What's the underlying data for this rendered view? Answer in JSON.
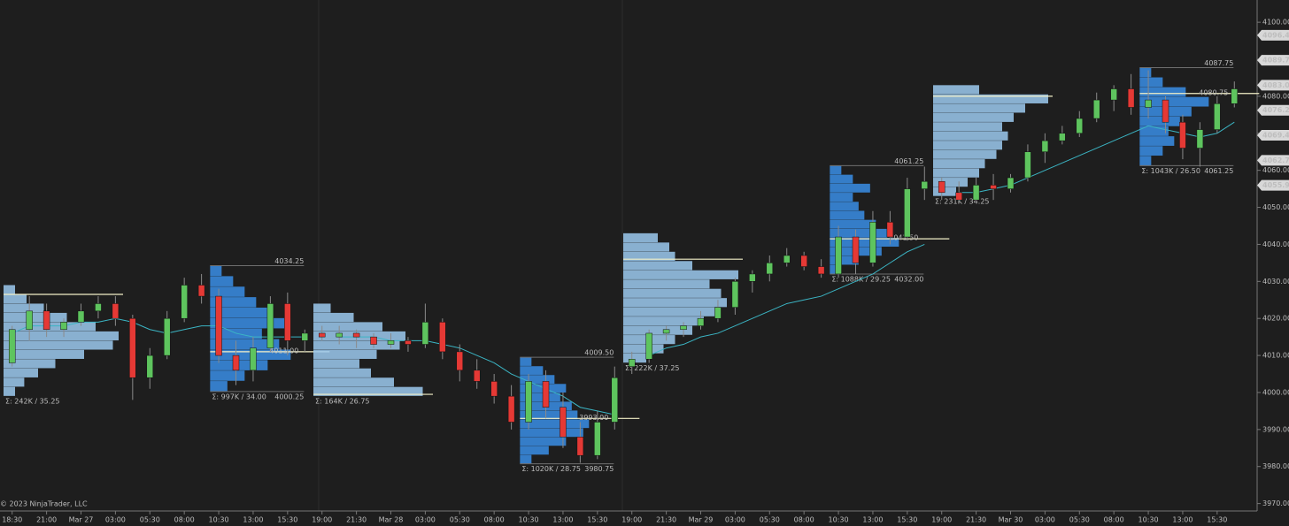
{
  "chart_data": {
    "type": "candlestick",
    "copyright": "© 2023 NinjaTrader, LLC",
    "up_color": "#5ec45e",
    "down_color": "#e53935",
    "ylim": [
      3968,
      4106
    ],
    "yticks": [
      {
        "value": 3970,
        "label": "3970.00"
      },
      {
        "value": 3980,
        "label": "3980.00"
      },
      {
        "value": 3990,
        "label": "3990.00"
      },
      {
        "value": 4000,
        "label": "4000.00"
      },
      {
        "value": 4010,
        "label": "4010.00"
      },
      {
        "value": 4020,
        "label": "4020.00"
      },
      {
        "value": 4030,
        "label": "4030.00"
      },
      {
        "value": 4040,
        "label": "4040.00"
      },
      {
        "value": 4050,
        "label": "4050.00"
      },
      {
        "value": 4060,
        "label": "4060.00"
      },
      {
        "value": 4070,
        "label": "4070.00"
      },
      {
        "value": 4080,
        "label": "4080.00"
      },
      {
        "value": 4090,
        "label": "4090.00"
      },
      {
        "value": 4100,
        "label": "4100.00"
      }
    ],
    "price_markers": [
      4096.49,
      4089.73,
      {
        "value": 4083,
        "label": "4083.00"
      },
      4076.22,
      4069.47,
      4062.71,
      4055.95
    ],
    "categories": [
      "18:30",
      null,
      "21:00",
      null,
      "Mar 27",
      null,
      "03:00",
      null,
      "05:30",
      null,
      "08:00",
      null,
      "10:30",
      null,
      "13:00",
      null,
      "15:30",
      null,
      "19:00",
      null,
      "21:30",
      null,
      "Mar 28",
      null,
      "03:00",
      null,
      "05:30",
      null,
      "08:00",
      null,
      "10:30",
      null,
      "13:00",
      null,
      "15:30",
      null,
      "19:00",
      null,
      "21:30",
      null,
      "Mar 29",
      null,
      "03:00",
      null,
      "05:30",
      null,
      "08:00",
      null,
      "10:30",
      null,
      "13:00",
      null,
      "15:30",
      null,
      "19:00",
      null,
      "21:30",
      null,
      "Mar 30",
      null,
      "03:00",
      null,
      "05:30",
      null,
      "08:00",
      null,
      "10:30",
      null,
      "13:00",
      null,
      "15:30",
      null
    ],
    "ohlc": [
      [
        4008,
        4018,
        4007,
        4017
      ],
      [
        4017,
        4026,
        4014,
        4022
      ],
      [
        4022,
        4024,
        4015,
        4017
      ],
      [
        4017,
        4020,
        4015,
        4019
      ],
      [
        4019,
        4024,
        4018,
        4022
      ],
      [
        4022,
        4026,
        4020,
        4024
      ],
      [
        4024,
        4026,
        4018,
        4020
      ],
      [
        4020,
        4021,
        3998,
        4004
      ],
      [
        4004,
        4012,
        4001,
        4010
      ],
      [
        4010,
        4022,
        4009,
        4020
      ],
      [
        4020,
        4031,
        4019,
        4029
      ],
      [
        4029,
        4032,
        4024,
        4026
      ],
      [
        4026,
        4028,
        4008,
        4010
      ],
      [
        4010,
        4014,
        4002,
        4006
      ],
      [
        4006,
        4015,
        4003,
        4012
      ],
      [
        4012,
        4026,
        4011,
        4024
      ],
      [
        4024,
        4027,
        4010,
        4014
      ],
      [
        4014,
        4017,
        4011,
        4016
      ],
      [
        4016,
        4018,
        4014,
        4015
      ],
      [
        4015,
        4018,
        4013,
        4016
      ],
      [
        4016,
        4017,
        4012,
        4015
      ],
      [
        4015,
        4016,
        4012,
        4013
      ],
      [
        4013,
        4016,
        4012,
        4014
      ],
      [
        4014,
        4015,
        4011,
        4013
      ],
      [
        4013,
        4024,
        4012,
        4019
      ],
      [
        4019,
        4020,
        4009,
        4011
      ],
      [
        4011,
        4013,
        4003,
        4006
      ],
      [
        4006,
        4009,
        4001,
        4003
      ],
      [
        4003,
        4005,
        3997,
        3999
      ],
      [
        3999,
        4002,
        3990,
        3992
      ],
      [
        3992,
        4005,
        3990,
        4003
      ],
      [
        4003,
        4006,
        3993,
        3996
      ],
      [
        3996,
        4000,
        3985,
        3988
      ],
      [
        3988,
        3992,
        3981,
        3983
      ],
      [
        3983,
        3995,
        3982,
        3992
      ],
      [
        3992,
        4007,
        3990,
        4004
      ],
      [
        4007,
        4011,
        4005,
        4009
      ],
      [
        4009,
        4017,
        4008,
        4016
      ],
      [
        4016,
        4018,
        4014,
        4017
      ],
      [
        4017,
        4019,
        4015,
        4018
      ],
      [
        4018,
        4022,
        4017,
        4020
      ],
      [
        4020,
        4025,
        4019,
        4023
      ],
      [
        4023,
        4031,
        4021,
        4030
      ],
      [
        4030,
        4033,
        4027,
        4032
      ],
      [
        4032,
        4037,
        4030,
        4035
      ],
      [
        4035,
        4039,
        4034,
        4037
      ],
      [
        4037,
        4038,
        4033,
        4034
      ],
      [
        4034,
        4036,
        4031,
        4032
      ],
      [
        4032,
        4045,
        4031,
        4042
      ],
      [
        4042,
        4044,
        4032,
        4035
      ],
      [
        4035,
        4049,
        4034,
        4046
      ],
      [
        4046,
        4049,
        4040,
        4042
      ],
      [
        4042,
        4058,
        4041,
        4055
      ],
      [
        4055,
        4061,
        4052,
        4057
      ],
      [
        4057,
        4058,
        4052,
        4054
      ],
      [
        4054,
        4057,
        4051,
        4052
      ],
      [
        4052,
        4058,
        4052,
        4056
      ],
      [
        4056,
        4059,
        4052,
        4055
      ],
      [
        4055,
        4059,
        4054,
        4058
      ],
      [
        4058,
        4067,
        4057,
        4065
      ],
      [
        4065,
        4070,
        4062,
        4068
      ],
      [
        4068,
        4072,
        4067,
        4070
      ],
      [
        4070,
        4076,
        4069,
        4074
      ],
      [
        4074,
        4081,
        4073,
        4079
      ],
      [
        4079,
        4083,
        4076,
        4082
      ],
      [
        4082,
        4086,
        4075,
        4077
      ],
      [
        4077,
        4087,
        4074,
        4079
      ],
      [
        4079,
        4080,
        4070,
        4073
      ],
      [
        4073,
        4075,
        4063,
        4066
      ],
      [
        4066,
        4073,
        4061,
        4071
      ],
      [
        4071,
        4080,
        4070,
        4078
      ],
      [
        4078,
        4084,
        4077,
        4082
      ]
    ],
    "vwap": {
      "color": "#3bb5c4",
      "values": [
        4016,
        4018,
        4018,
        4018,
        4019,
        4019,
        4020,
        4019,
        4017,
        4016,
        4017,
        4018,
        4018,
        4016,
        4015,
        4015,
        4015,
        4015,
        null,
        4015,
        4015,
        4015,
        4014,
        4014,
        4014,
        4013,
        4012,
        4010,
        4008,
        4005,
        4003,
        4001,
        3999,
        3996,
        3995,
        3994,
        null,
        4010,
        4012,
        4013,
        4015,
        4016,
        4018,
        4020,
        4022,
        4024,
        4025,
        4026,
        4028,
        4030,
        4032,
        4035,
        4038,
        4040,
        null,
        4054,
        4054,
        4055,
        4056,
        4058,
        4060,
        4062,
        4064,
        4066,
        4068,
        4070,
        4072,
        4071,
        4070,
        4069,
        4070,
        4073
      ]
    },
    "profiles": [
      {
        "start": 0,
        "low": 3999,
        "high": 4029,
        "poc": 4026.5,
        "color": "#9ccaf0",
        "summary": "Σ: 242K / 35.25",
        "volumes": [
          10,
          18,
          30,
          45,
          70,
          95,
          100,
          80,
          55,
          35,
          20,
          10
        ]
      },
      {
        "start": 12,
        "low": {
          "value": 4000.25,
          "label": "4000.25"
        },
        "high": {
          "value": 4034.25,
          "label": "4034.25"
        },
        "poc": {
          "value": 4011,
          "label": "4011.00"
        },
        "color": "#3a8ee6",
        "summary": "Σ: 997K / 34.00",
        "volumes": [
          15,
          30,
          50,
          70,
          60,
          45,
          70,
          55,
          40,
          30,
          20,
          10
        ]
      },
      {
        "start": 18,
        "low": 3999,
        "high": 4024,
        "poc": 3999.5,
        "color": "#9ccaf0",
        "summary": "Σ: 164K / 26.75",
        "volumes": [
          95,
          70,
          50,
          40,
          55,
          75,
          80,
          60,
          35,
          15
        ]
      },
      {
        "start": 30,
        "low": {
          "value": 3980.75,
          "label": "3980.75"
        },
        "high": {
          "value": 4009.5,
          "label": "4009.50"
        },
        "poc": {
          "value": 3993,
          "label": "3993.00"
        },
        "color": "#3a8ee6",
        "summary": "Σ: 1020K / 28.75",
        "volumes": [
          10,
          25,
          40,
          55,
          60,
          50,
          45,
          35,
          40,
          30,
          20,
          10
        ]
      },
      {
        "start": 36,
        "low": 4008,
        "high": 4043,
        "poc": 4036,
        "color": "#9ccaf0",
        "summary": "Σ: 222K / 37.25",
        "volumes": [
          20,
          35,
          45,
          60,
          70,
          80,
          90,
          85,
          75,
          100,
          60,
          45,
          40,
          30
        ]
      },
      {
        "start": 48,
        "low": {
          "value": 4032,
          "label": "4032.00"
        },
        "high": {
          "value": 4061.25,
          "label": "4061.25"
        },
        "poc": {
          "value": 4041.5,
          "label": "4041.50"
        },
        "color": "#3a8ee6",
        "summary": "Σ: 1088K / 29.25",
        "volumes": [
          10,
          25,
          45,
          60,
          50,
          40,
          30,
          25,
          20,
          35,
          20,
          10
        ]
      },
      {
        "start": 54,
        "low": 4053,
        "high": 4083,
        "poc": 4080,
        "color": "#9ccaf0",
        "summary": "Σ: 231K / 34.25",
        "volumes": [
          20,
          30,
          40,
          45,
          55,
          60,
          65,
          60,
          70,
          80,
          100,
          40
        ]
      },
      {
        "start": 66,
        "low": {
          "value": 4061.25,
          "label": "4061.25"
        },
        "high": {
          "value": 4087.75,
          "label": "4087.75"
        },
        "poc": {
          "value": 4080.75,
          "label": "4080.75"
        },
        "color": "#3a8ee6",
        "summary": "Σ: 1043K / 26.50",
        "volumes": [
          10,
          20,
          30,
          25,
          35,
          45,
          60,
          40,
          20,
          10
        ]
      }
    ]
  }
}
